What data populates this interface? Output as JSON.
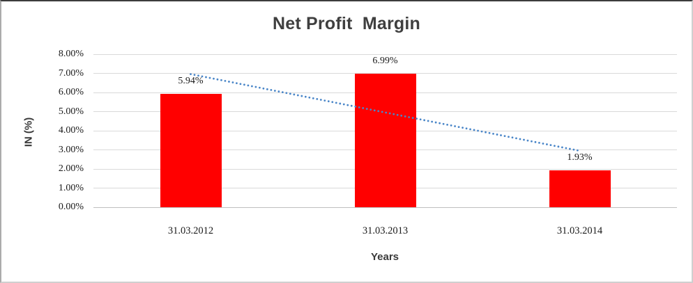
{
  "chart_data": {
    "type": "bar",
    "title": "Net Profit  Margin",
    "ylabel": "IN (%)",
    "xlabel": "Years",
    "categories": [
      "31.03.2012",
      "31.03.2013",
      "31.03.2014"
    ],
    "series": [
      {
        "name": "Net Profit Margin",
        "values": [
          5.94,
          6.99,
          1.93
        ]
      }
    ],
    "data_labels": [
      "5.94%",
      "6.99%",
      "1.93%"
    ],
    "ylim": [
      0,
      8
    ],
    "ytick_labels": [
      "0.00%",
      "1.00%",
      "2.00%",
      "3.00%",
      "4.00%",
      "5.00%",
      "6.00%",
      "7.00%",
      "8.00%"
    ],
    "grid": true,
    "legend_position": "none",
    "bar_color": "#ff0000",
    "trendline": {
      "type": "linear",
      "style": "round-dot",
      "color": "#4a86c8",
      "start_pct": 6.96,
      "end_pct": 2.95
    }
  },
  "style_colors": {
    "gridline": "#d9d9d9",
    "axis_line": "#bfbfbf",
    "title_text": "#3f3f3f",
    "axis_title_text": "#3a3a3a",
    "tick_text": "#1a1a1a"
  }
}
